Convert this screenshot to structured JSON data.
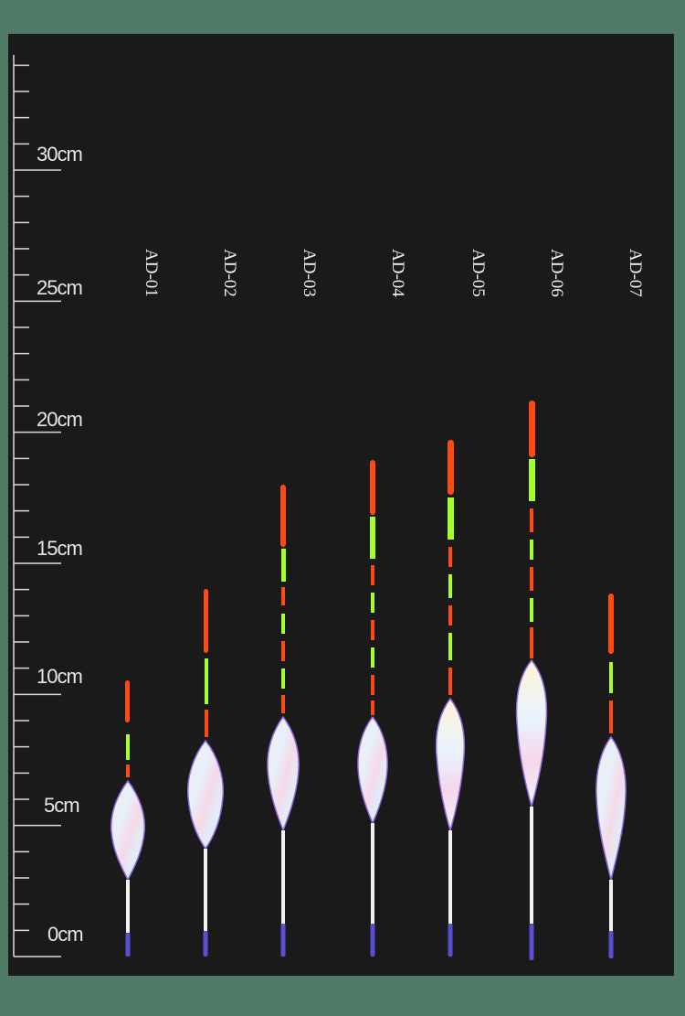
{
  "ruler": {
    "labels": [
      "30cm",
      "25cm",
      "20cm",
      "15cm",
      "10cm",
      "5cm",
      "0cm"
    ]
  },
  "models": [
    "AD-01",
    "AD-02",
    "AD-03",
    "AD-04",
    "AD-05",
    "AD-06",
    "AD-07"
  ],
  "colors": {
    "background": "#1a1a1a",
    "frame": "#4f7a66",
    "tip_orange": "#ff4a12",
    "tip_green": "#a6ff2b",
    "stem_blue": "#5a4fd1"
  }
}
